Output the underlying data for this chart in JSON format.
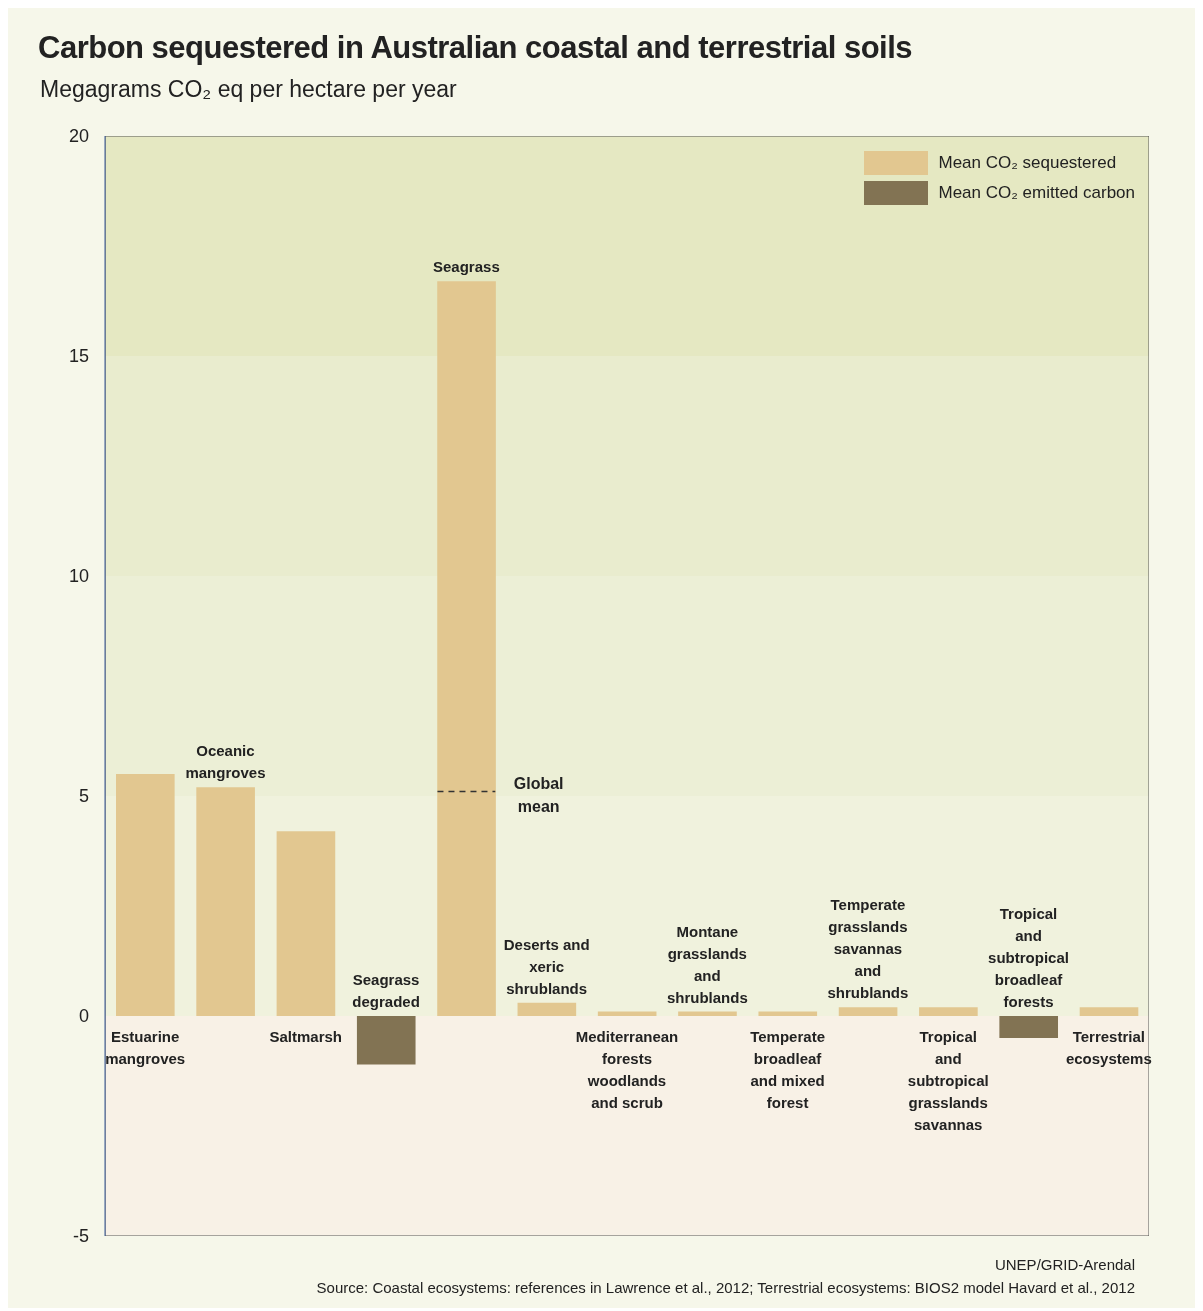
{
  "chart_data": {
    "type": "bar",
    "title": "Carbon sequestered in Australian coastal and terrestrial soils",
    "subtitle": "Megagrams CO₂ eq per hectare per year",
    "categories": [
      "Estuarine mangroves",
      "Oceanic mangroves",
      "Saltmarsh",
      "Seagrass degraded",
      "Seagrass",
      "Deserts and xeric shrublands",
      "Mediterranean forests woodlands and scrub",
      "Montane grasslands and shrublands",
      "Temperate broadleaf and mixed forest",
      "Temperate grasslands savannas and shrublands",
      "Tropical and subtropical grasslands savannas",
      "Tropical and subtropical broadleaf forests",
      "Terrestrial ecosystems"
    ],
    "series": [
      {
        "name": "Mean CO₂ sequestered",
        "color": "#e2c790",
        "values": [
          5.5,
          5.2,
          4.2,
          null,
          16.7,
          0.3,
          0.1,
          0.1,
          0.1,
          0.2,
          0.2,
          null,
          0.2
        ]
      },
      {
        "name": "Mean CO₂ emitted carbon",
        "color": "#827353",
        "values": [
          null,
          null,
          null,
          -1.1,
          null,
          null,
          null,
          null,
          null,
          null,
          null,
          -0.5,
          null
        ]
      }
    ],
    "stacked": true,
    "ylim": [
      -5,
      20
    ],
    "yticks": [
      -5,
      0,
      5,
      10,
      15,
      20
    ],
    "legend": "top right",
    "bands": [
      {
        "axis": "y",
        "from": 15,
        "to": 20,
        "color": "#e5e8c2"
      },
      {
        "axis": "y",
        "from": 10,
        "to": 15,
        "color": "#e9ecce"
      },
      {
        "axis": "y",
        "from": 5,
        "to": 10,
        "color": "#ecefd6"
      },
      {
        "axis": "y",
        "from": 0,
        "to": 5,
        "color": "#f0f2dd"
      },
      {
        "axis": "y",
        "from": -5,
        "to": 0,
        "color": "#f8f1e6"
      }
    ],
    "ref_lines": [
      {
        "axis": "y",
        "value": 5.1,
        "label": "Global mean",
        "line_style": "dashed",
        "color": "#333333"
      }
    ],
    "annotations": [
      "UNEP/GRID-Arendal",
      "Source: Coastal ecosystems: references in Lawrence et al., 2012; Terrestrial ecosystems: BIOS2 model Havard et al., 2012"
    ]
  }
}
